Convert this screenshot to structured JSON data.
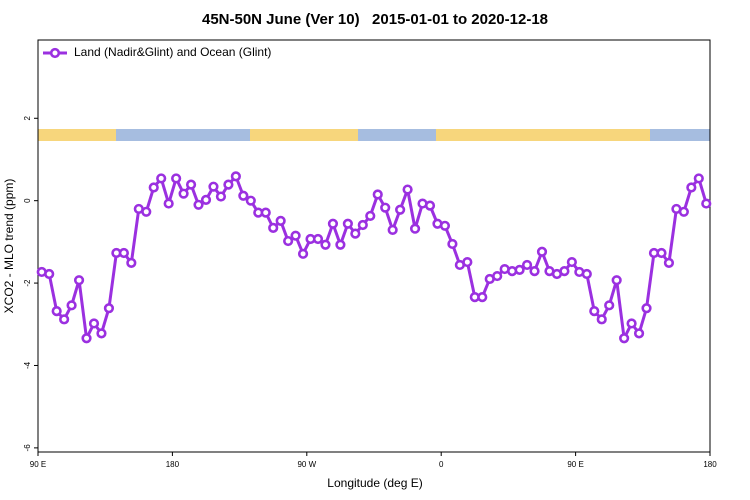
{
  "chart_data": {
    "type": "line",
    "title": "45N-50N June (Ver 10)   2015-01-01 to 2020-12-18",
    "xlabel": "Longitude (deg E)",
    "ylabel": "XCO2 - MLO trend (ppm)",
    "xlim": [
      90,
      540
    ],
    "ylim": [
      -6.1,
      3.9
    ],
    "xticks": [
      {
        "value": 90,
        "label": "90 E"
      },
      {
        "value": 180,
        "label": "180"
      },
      {
        "value": 270,
        "label": "90 W"
      },
      {
        "value": 360,
        "label": "0"
      },
      {
        "value": 450,
        "label": "90 E"
      },
      {
        "value": 540,
        "label": "180"
      }
    ],
    "yticks": [
      -6,
      -4,
      -2,
      0,
      2
    ],
    "legend": "top-left",
    "x": [
      92.5,
      97.5,
      102.5,
      107.5,
      112.5,
      117.5,
      122.5,
      127.5,
      132.5,
      137.5,
      142.5,
      147.5,
      152.5,
      157.5,
      162.5,
      167.5,
      172.5,
      177.5,
      182.5,
      187.5,
      192.5,
      197.5,
      202.5,
      207.5,
      212.5,
      217.5,
      222.5,
      227.5,
      232.5,
      237.5,
      242.5,
      247.5,
      252.5,
      257.5,
      262.5,
      267.5,
      272.5,
      277.5,
      282.5,
      287.5,
      292.5,
      297.5,
      302.5,
      307.5,
      312.5,
      317.5,
      322.5,
      327.5,
      332.5,
      337.5,
      342.5,
      347.5,
      352.5,
      357.5,
      362.5,
      367.5,
      372.5,
      377.5,
      382.5,
      387.5,
      392.5,
      397.5,
      402.5,
      407.5,
      412.5,
      417.5,
      422.5,
      427.5,
      432.5,
      437.5,
      442.5,
      447.5,
      452.5,
      457.5,
      462.5,
      467.5,
      472.5,
      477.5,
      482.5,
      487.5,
      492.5,
      497.5,
      502.5,
      507.5,
      512.5,
      517.5,
      522.5,
      527.5,
      532.5,
      537.5
    ],
    "series": [
      {
        "name": "Land (Nadir&Glint) and Ocean (Glint)",
        "color": "#9b30e0",
        "values": [
          -1.73,
          -1.78,
          -2.68,
          -2.88,
          -2.54,
          -1.93,
          -3.34,
          -2.98,
          -3.22,
          -2.61,
          -1.27,
          -1.27,
          -1.51,
          -0.2,
          -0.27,
          0.32,
          0.54,
          -0.07,
          0.54,
          0.17,
          0.39,
          -0.1,
          0.02,
          0.34,
          0.1,
          0.39,
          0.59,
          0.12,
          0,
          -0.29,
          -0.29,
          -0.66,
          -0.49,
          -0.98,
          -0.85,
          -1.29,
          -0.93,
          -0.93,
          -1.07,
          -0.56,
          -1.07,
          -0.56,
          -0.8,
          -0.59,
          -0.37,
          0.15,
          -0.17,
          -0.71,
          -0.22,
          0.27,
          -0.68,
          -0.07,
          -0.12,
          -0.56,
          -0.61,
          -1.05,
          -1.56,
          -1.49,
          -2.34,
          -2.34,
          -1.9,
          -1.83,
          -1.66,
          -1.71,
          -1.68,
          -1.56,
          -1.71,
          -1.24,
          -1.71,
          -1.78,
          -1.71,
          -1.49,
          -1.73,
          -1.78,
          -2.68,
          -2.88,
          -2.54,
          -1.93,
          -3.34,
          -2.98,
          -3.22,
          -2.61,
          -1.27,
          -1.27,
          -1.51,
          -0.2,
          -0.27,
          0.32,
          0.54,
          -0.07
        ]
      }
    ]
  }
}
